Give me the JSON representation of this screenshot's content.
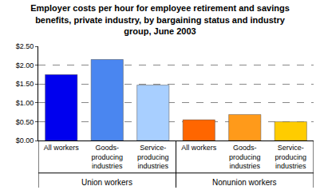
{
  "chart_data": {
    "type": "bar",
    "title": "Employer costs per hour for employee retirement and savings benefits, private industry, by bargaining status and industry group, June 2003",
    "categories": [
      "All workers",
      "Goods-producing industries",
      "Service-producing industries",
      "All workers",
      "Goods-producing industries",
      "Service-producing industries"
    ],
    "groups": [
      "Union workers",
      "Union workers",
      "Union workers",
      "Nonunion workers",
      "Nonunion workers",
      "Nonunion workers"
    ],
    "values": [
      1.75,
      2.15,
      1.47,
      0.55,
      0.69,
      0.5
    ],
    "colors": [
      "#0000ee",
      "#4a86f0",
      "#a8cfff",
      "#ff6600",
      "#ff9a1a",
      "#ffcc00"
    ],
    "ylim": [
      0,
      2.5
    ],
    "yticks": [
      {
        "value": 0,
        "label": "$0.00"
      },
      {
        "value": 0.5,
        "label": "$0.50"
      },
      {
        "value": 1,
        "label": "$1.00"
      },
      {
        "value": 1.5,
        "label": "$1.50"
      },
      {
        "value": 2,
        "label": "$2.00"
      },
      {
        "value": 2.5,
        "label": "$2.50"
      }
    ],
    "grid": true
  }
}
